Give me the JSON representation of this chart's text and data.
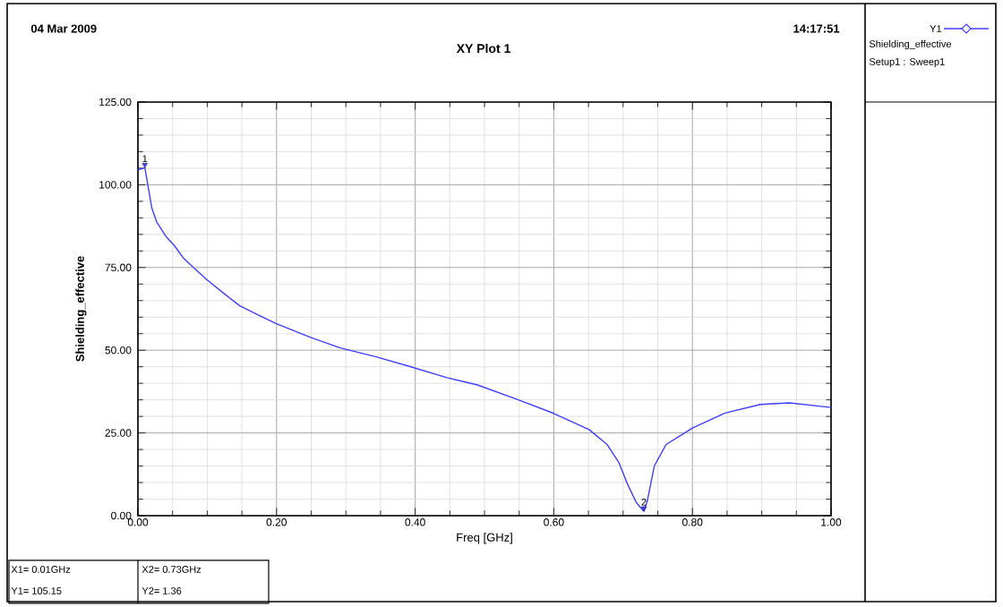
{
  "chart_data": {
    "type": "line",
    "title": "XY Plot 1",
    "xlabel": "Freq [GHz]",
    "ylabel": "Shielding_effective",
    "x": [
      0,
      0.01,
      0.02,
      0.027,
      0.04,
      0.053,
      0.065,
      0.079,
      0.1,
      0.125,
      0.147,
      0.175,
      0.2,
      0.25,
      0.292,
      0.344,
      0.395,
      0.446,
      0.49,
      0.549,
      0.6,
      0.651,
      0.677,
      0.694,
      0.706,
      0.719,
      0.725,
      0.73,
      0.735,
      0.745,
      0.762,
      0.8,
      0.847,
      0.898,
      0.94,
      1.0
    ],
    "series": [
      {
        "name": "Y1",
        "color": "#3f3fff",
        "values": [
          104.5,
          105.15,
          93,
          88.8,
          84.5,
          81.5,
          78,
          75.2,
          71.2,
          67,
          63.4,
          60.5,
          58,
          53.8,
          50.7,
          48,
          44.9,
          41.7,
          39.5,
          35,
          30.9,
          26,
          21.5,
          16,
          9.7,
          4,
          2.5,
          1.36,
          4.5,
          15,
          21.5,
          26.5,
          31,
          33.6,
          34.1,
          32.7
        ]
      }
    ],
    "xlim": [
      0,
      1
    ],
    "ylim": [
      0,
      125
    ],
    "xticks": [
      {
        "value": 0,
        "label": "0.00"
      },
      {
        "value": 0.2,
        "label": "0.20"
      },
      {
        "value": 0.4,
        "label": "0.40"
      },
      {
        "value": 0.6,
        "label": "0.60"
      },
      {
        "value": 0.8,
        "label": "0.80"
      },
      {
        "value": 1,
        "label": "1.00"
      }
    ],
    "yticks": [
      {
        "value": 0,
        "label": "0.00"
      },
      {
        "value": 25,
        "label": "25.00"
      },
      {
        "value": 50,
        "label": "50.00"
      },
      {
        "value": 75,
        "label": "75.00"
      },
      {
        "value": 100,
        "label": "100.00"
      },
      {
        "value": 125,
        "label": "125.00"
      }
    ],
    "grid": true,
    "legend": "right",
    "annotations": [
      "04 Mar 2009",
      "14:17:51",
      "Shielding_effective",
      "Setup1 : Sweep1",
      {
        "text": "1",
        "x": 0.01,
        "y": 105.15
      },
      {
        "text": "2",
        "x": 0.73,
        "y": 1.36
      },
      "X1= 0.01GHz",
      "Y1= 105.15",
      "X2= 0.73GHz",
      "Y2=  1.36"
    ]
  }
}
